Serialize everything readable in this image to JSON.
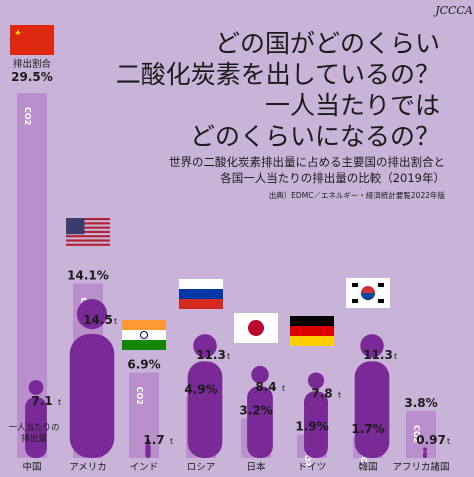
{
  "logo": "JCCCA",
  "title_lines": [
    "どの国がどのくらい",
    "二酸化炭素を出しているの？",
    "一人当たりでは",
    "どのくらいになるの？"
  ],
  "subtitle_lines": [
    "世界の二酸化炭素排出量に占める主要国の排出割合と",
    "各国一人当たりの排出量の比較（2019年）"
  ],
  "source": "出典）EDMC／エネルギー・経済統計要覧2022年版",
  "colors": {
    "background": "#c9b3d8",
    "share_bar": "#b98fcc",
    "per_capita": "#7a2a96",
    "text": "#1b1b1b"
  },
  "chart_data": {
    "type": "bar",
    "categories": [
      "中国",
      "アメリカ",
      "インド",
      "ロシア",
      "日本",
      "ドイツ",
      "韓国",
      "アフリカ諸国"
    ],
    "series": [
      {
        "name": "排出割合",
        "unit": "%",
        "values": [
          29.5,
          14.1,
          6.9,
          4.9,
          3.2,
          1.9,
          1.7,
          3.8
        ],
        "labels": [
          "29.5%",
          "14.1%",
          "6.9%",
          "4.9%",
          "3.2%",
          "1.9%",
          "1.7%",
          "3.8%"
        ]
      },
      {
        "name": "一人当たりの排出量",
        "unit": "t",
        "values": [
          7.1,
          14.5,
          1.7,
          11.3,
          8.4,
          7.8,
          11.3,
          0.97
        ],
        "labels": [
          "7.1",
          "14.5",
          "1.7",
          "11.3",
          "8.4",
          "7.8",
          "11.3",
          "0.97"
        ]
      }
    ],
    "legend": {
      "share_label": "排出割合",
      "per_capita_lines": [
        "一人当たりの",
        "排出量"
      ]
    },
    "bar_tag": "CO2",
    "unit_suffix": "t",
    "flags": [
      "china-flag",
      "usa-flag",
      "india-flag",
      "russia-flag",
      "japan-flag",
      "germany-flag",
      "korea-flag",
      ""
    ]
  }
}
